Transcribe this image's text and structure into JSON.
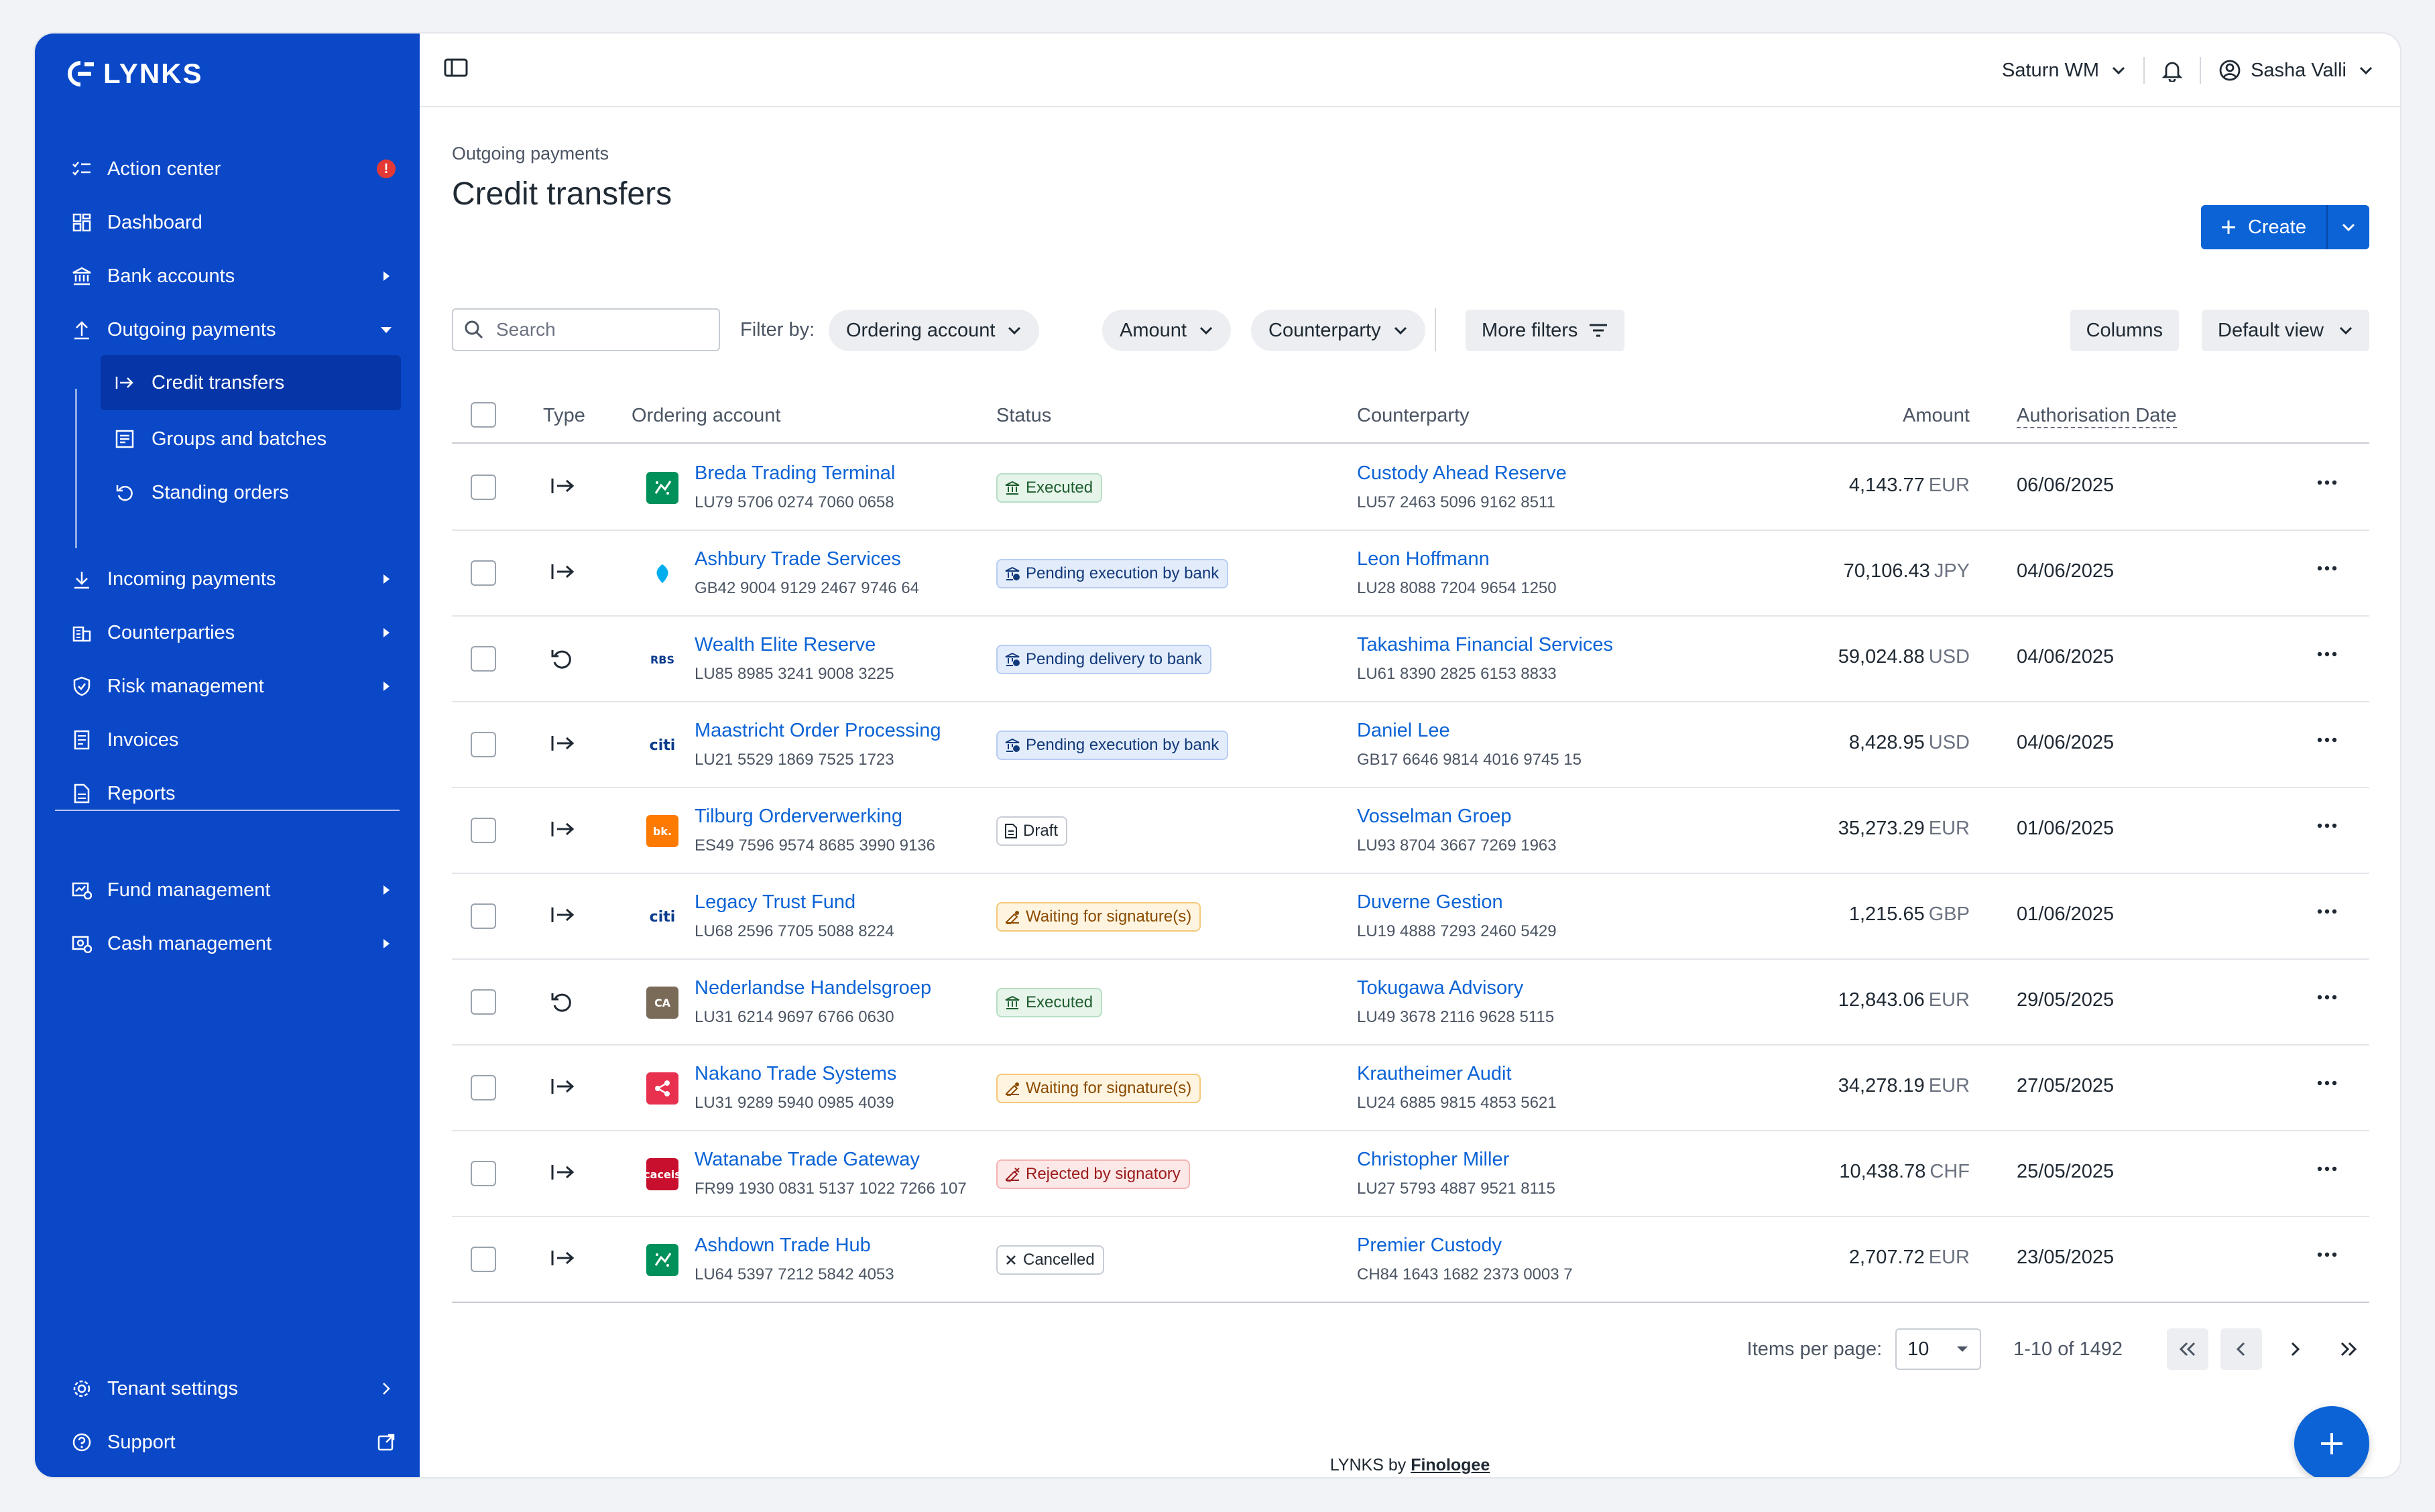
{
  "app": {
    "logo_text": "LYNKS"
  },
  "sidebar": {
    "items": [
      {
        "label": "Action center",
        "icon": "checklist-icon",
        "badge": "!"
      },
      {
        "label": "Dashboard",
        "icon": "dashboard-icon"
      },
      {
        "label": "Bank accounts",
        "icon": "bank-icon"
      },
      {
        "label": "Outgoing payments",
        "icon": "upload-icon"
      },
      {
        "label": "Incoming payments",
        "icon": "download-icon"
      },
      {
        "label": "Counterparties",
        "icon": "building-icon"
      },
      {
        "label": "Risk management",
        "icon": "shield-icon"
      },
      {
        "label": "Invoices",
        "icon": "invoice-icon"
      },
      {
        "label": "Reports",
        "icon": "report-icon"
      },
      {
        "label": "Fund management",
        "icon": "fund-icon"
      },
      {
        "label": "Cash management",
        "icon": "cash-icon"
      },
      {
        "label": "Tenant settings",
        "icon": "gear-icon"
      },
      {
        "label": "Support",
        "icon": "help-icon"
      }
    ],
    "sub_items": [
      {
        "label": "Credit transfers",
        "icon": "transfer-arrow-icon"
      },
      {
        "label": "Groups and batches",
        "icon": "batch-icon"
      },
      {
        "label": "Standing orders",
        "icon": "recurring-icon"
      }
    ]
  },
  "topbar": {
    "organization": "Saturn WM",
    "user": "Sasha Valli"
  },
  "page": {
    "breadcrumb": "Outgoing payments",
    "title": "Credit transfers",
    "create_label": "Create"
  },
  "filters": {
    "search_placeholder": "Search",
    "filter_by_label": "Filter by:",
    "chips": [
      "Ordering account",
      "Amount",
      "Counterparty"
    ],
    "more_filters": "More filters",
    "columns": "Columns",
    "default_view": "Default view"
  },
  "table": {
    "headers": {
      "type": "Type",
      "ordering_account": "Ordering account",
      "status": "Status",
      "counterparty": "Counterparty",
      "amount": "Amount",
      "date": "Authorisation Date"
    },
    "rows": [
      {
        "type": "transfer",
        "bank": "bnp",
        "account": "Breda Trading Terminal",
        "iban": "LU79 5706 0274 7060 0658",
        "status": "Executed",
        "status_kind": "executed",
        "counterparty": "Custody Ahead Reserve",
        "cp_iban": "LU57 2463 5096 9162 8511",
        "amount": "4,143.77",
        "currency": "EUR",
        "date": "06/06/2025"
      },
      {
        "type": "transfer",
        "bank": "barclays",
        "account": "Ashbury Trade Services",
        "iban": "GB42 9004 9129 2467 9746 64",
        "status": "Pending execution by bank",
        "status_kind": "pending",
        "counterparty": "Leon Hoffmann",
        "cp_iban": "LU28 8088 7204 9654 1250",
        "amount": "70,106.43",
        "currency": "JPY",
        "date": "04/06/2025"
      },
      {
        "type": "recurring",
        "bank": "rbs",
        "account": "Wealth Elite Reserve",
        "iban": "LU85 8985 3241 9008 3225",
        "status": "Pending delivery to bank",
        "status_kind": "pending",
        "counterparty": "Takashima Financial Services",
        "cp_iban": "LU61 8390 2825 6153 8833",
        "amount": "59,024.88",
        "currency": "USD",
        "date": "04/06/2025"
      },
      {
        "type": "transfer",
        "bank": "citi",
        "account": "Maastricht Order Processing",
        "iban": "LU21 5529 1869 7525 1723",
        "status": "Pending execution by bank",
        "status_kind": "pending",
        "counterparty": "Daniel Lee",
        "cp_iban": "GB17 6646 9814 4016 9745 15",
        "amount": "8,428.95",
        "currency": "USD",
        "date": "04/06/2025"
      },
      {
        "type": "transfer",
        "bank": "bk",
        "account": "Tilburg Orderverwerking",
        "iban": "ES49 7596 9574 8685 3990 9136",
        "status": "Draft",
        "status_kind": "draft",
        "counterparty": "Vosselman Groep",
        "cp_iban": "LU93 8704 3667 7269 1963",
        "amount": "35,273.29",
        "currency": "EUR",
        "date": "01/06/2025"
      },
      {
        "type": "transfer",
        "bank": "citi",
        "account": "Legacy Trust Fund",
        "iban": "LU68 2596 7705 5088 8224",
        "status": "Waiting for signature(s)",
        "status_kind": "waiting",
        "counterparty": "Duverne Gestion",
        "cp_iban": "LU19 4888 7293 2460 5429",
        "amount": "1,215.65",
        "currency": "GBP",
        "date": "01/06/2025"
      },
      {
        "type": "recurring",
        "bank": "ca",
        "account": "Nederlandse Handelsgroep",
        "iban": "LU31 6214 9697 6766 0630",
        "status": "Executed",
        "status_kind": "executed",
        "counterparty": "Tokugawa Advisory",
        "cp_iban": "LU49 3678 2116 9628 5115",
        "amount": "12,843.06",
        "currency": "EUR",
        "date": "29/05/2025"
      },
      {
        "type": "transfer",
        "bank": "share",
        "account": "Nakano Trade Systems",
        "iban": "LU31 9289 5940 0985 4039",
        "status": "Waiting for signature(s)",
        "status_kind": "waiting",
        "counterparty": "Krautheimer Audit",
        "cp_iban": "LU24 6885 9815 4853 5621",
        "amount": "34,278.19",
        "currency": "EUR",
        "date": "27/05/2025"
      },
      {
        "type": "transfer",
        "bank": "caceis",
        "account": "Watanabe Trade Gateway",
        "iban": "FR99 1930 0831 5137 1022 7266 107",
        "status": "Rejected by signatory",
        "status_kind": "rejected",
        "counterparty": "Christopher Miller",
        "cp_iban": "LU27 5793 4887 9521 8115",
        "amount": "10,438.78",
        "currency": "CHF",
        "date": "25/05/2025"
      },
      {
        "type": "transfer",
        "bank": "bnp",
        "account": "Ashdown Trade Hub",
        "iban": "LU64 5397 7212 5842 4053",
        "status": "Cancelled",
        "status_kind": "cancelled",
        "counterparty": "Premier Custody",
        "cp_iban": "CH84 1643 1682 2373 0003 7",
        "amount": "2,707.72",
        "currency": "EUR",
        "date": "23/05/2025"
      }
    ]
  },
  "bank_logos": {
    "bnp": {
      "bg": "#00915a",
      "text": ""
    },
    "barclays": {
      "bg": "#ffffff",
      "text": ""
    },
    "rbs": {
      "bg": "#ffffff",
      "text": "RBS"
    },
    "citi": {
      "bg": "#ffffff",
      "text": "citi"
    },
    "bk": {
      "bg": "#ff7a00",
      "text": "bk."
    },
    "ca": {
      "bg": "#7a6a58",
      "text": "CA"
    },
    "share": {
      "bg": "#e8304f",
      "text": ""
    },
    "caceis": {
      "bg": "#c8102e",
      "text": "caceis"
    }
  },
  "pagination": {
    "label": "Items per page:",
    "per_page": "10",
    "range": "1-10 of 1492"
  },
  "footer": {
    "prefix": "LYNKS by",
    "brand": "Finologee"
  },
  "colors": {
    "sidebar": "#0a48c8",
    "accent": "#0b63d6"
  }
}
